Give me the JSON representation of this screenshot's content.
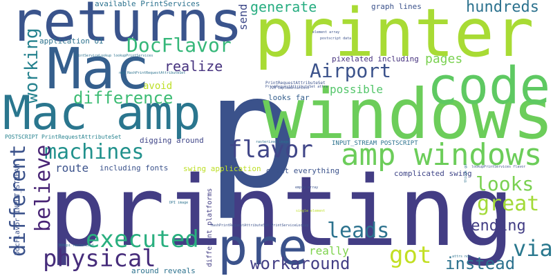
{
  "colors": {
    "background": "#ffffff",
    "palette": [
      "#440154",
      "#472d7b",
      "#3b528b",
      "#2c728e",
      "#21918c",
      "#28ae80",
      "#5ec962",
      "#addc30",
      "#fde725"
    ]
  },
  "words": [
    {
      "text": "printing",
      "color": "#433d84"
    },
    {
      "text": "p",
      "color": "#3b528b"
    },
    {
      "text": "printer",
      "color": "#a8db34"
    },
    {
      "text": "windows",
      "color": "#6ccd5a"
    },
    {
      "text": "returns",
      "color": "#3a548c"
    },
    {
      "text": "Mac amp",
      "color": "#2a768e"
    },
    {
      "text": "Mac",
      "color": "#355f8d"
    },
    {
      "text": "code",
      "color": "#5ec962"
    },
    {
      "text": "pre",
      "color": "#3b528b"
    },
    {
      "text": "amp windows",
      "color": "#6ccd5a"
    },
    {
      "text": "flavor",
      "color": "#404688"
    },
    {
      "text": "executed",
      "color": "#29af7f"
    },
    {
      "text": "physical",
      "color": "#472d7b"
    },
    {
      "text": "DocFlavor",
      "color": "#35b779"
    },
    {
      "text": "Airport",
      "color": "#3b528b"
    },
    {
      "text": "machines",
      "color": "#21918c"
    },
    {
      "text": "difference",
      "color": "#3dbc74"
    },
    {
      "text": "looks",
      "color": "#7ad151"
    },
    {
      "text": "great",
      "color": "#a2da37"
    },
    {
      "text": "leads",
      "color": "#2c728e"
    },
    {
      "text": "via",
      "color": "#2a788e"
    },
    {
      "text": "workaround",
      "color": "#433e85"
    },
    {
      "text": "got",
      "color": "#c2df23"
    },
    {
      "text": "instead",
      "color": "#2c728e"
    },
    {
      "text": "realize",
      "color": "#46327e"
    },
    {
      "text": "believe",
      "color": "#482475"
    },
    {
      "text": "different",
      "color": "#3b528b"
    },
    {
      "text": "working",
      "color": "#26828e"
    },
    {
      "text": "generate",
      "color": "#27ad81"
    },
    {
      "text": "hundreds",
      "color": "#2c728e"
    },
    {
      "text": "sending",
      "color": "#433e85"
    },
    {
      "text": "route",
      "color": "#3b528b"
    },
    {
      "text": "pages",
      "color": "#7ad151"
    },
    {
      "text": "possible",
      "color": "#52c569"
    },
    {
      "text": "avoid",
      "color": "#bddf26"
    },
    {
      "text": "really",
      "color": "#7fd34e"
    },
    {
      "text": "send",
      "color": "#3e4989"
    },
    {
      "text": "available PrintServices",
      "color": "#2c728e"
    },
    {
      "text": "graph lines",
      "color": "#3b528b"
    },
    {
      "text": "application UI",
      "color": "#2c728e"
    },
    {
      "text": "pixelated including",
      "color": "#46327e"
    },
    {
      "text": "PrintRequestAttributeSet",
      "color": "#3b528b"
    },
    {
      "text": "digging around",
      "color": "#404688"
    },
    {
      "text": "looks far",
      "color": "#355f8d"
    },
    {
      "text": "POSTSCRIPT PrintRequestAttributeSet",
      "color": "#26828e"
    },
    {
      "text": "INPUT_STREAM POSTSCRIPT",
      "color": "#2c728e"
    },
    {
      "text": "including fonts",
      "color": "#3b528b"
    },
    {
      "text": "swing application",
      "color": "#bddf26"
    },
    {
      "text": "complicated swing",
      "color": "#404688"
    },
    {
      "text": "great everything",
      "color": "#3b528b"
    },
    {
      "text": "DocFlavor INPUT_STREAM",
      "color": "#3b528b"
    },
    {
      "text": "different platforms",
      "color": "#433e85"
    },
    {
      "text": "around reveals",
      "color": "#2c728e"
    },
    {
      "text": "element array",
      "color": "#3b528b"
    },
    {
      "text": "postscript data",
      "color": "#3b528b"
    },
    {
      "text": "PrintServiceLookup lookupPrintServices",
      "color": "#2c728e"
    },
    {
      "text": "new HashPrintRequestAttributeSet",
      "color": "#2c728e"
    },
    {
      "text": "PrintRequestAttributeSet attrs",
      "color": "#3b528b"
    },
    {
      "text": "JVM implementations",
      "color": "#3b528b"
    },
    {
      "text": "HashPrintRequestAttributeSet PrintServiceLookup",
      "color": "#3b528b"
    },
    {
      "text": "lookupPrintServices flavor",
      "color": "#3b528b"
    },
    {
      "text": "empty array",
      "color": "#3b528b"
    },
    {
      "text": "DPI image",
      "color": "#2c728e"
    },
    {
      "text": "rasterized image",
      "color": "#2c728e"
    },
    {
      "text": "single element",
      "color": "#bddf26"
    },
    {
      "text": "attrs now",
      "color": "#2c728e"
    },
    {
      "text": "things go",
      "color": "#2c728e"
    },
    {
      "text": "360dpi rasterized",
      "color": "#2c728e"
    }
  ]
}
